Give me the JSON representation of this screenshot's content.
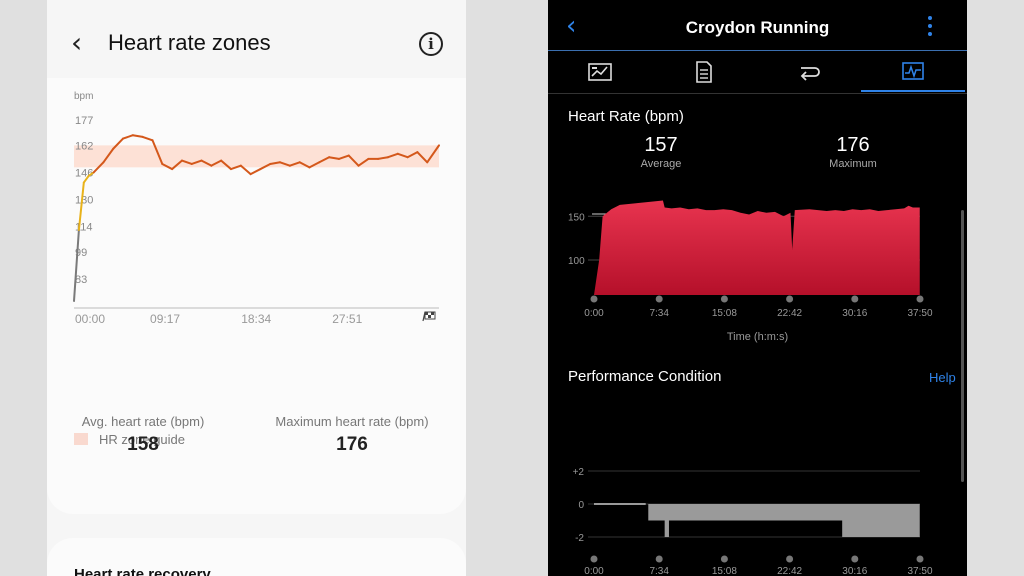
{
  "left": {
    "header": {
      "back_icon": "chevron-left-icon",
      "title": "Heart rate zones",
      "info_icon": "info-icon"
    },
    "chart_data": {
      "type": "line",
      "ylabel": "bpm",
      "yticks": [
        "177",
        "162",
        "146",
        "130",
        "114",
        "99",
        "83"
      ],
      "xticks": [
        "00:00",
        "09:17",
        "18:34",
        "27:51"
      ],
      "finish_icon": "checkered-flag-icon",
      "zone_band_bpm": [
        149,
        162
      ],
      "series": [
        {
          "x_min": [
            0,
            0.5,
            1,
            1.5,
            2,
            3,
            4,
            5,
            6,
            7,
            8,
            9,
            10,
            11,
            12,
            13,
            14,
            15,
            16,
            17,
            18,
            19,
            20,
            21,
            22,
            23,
            24,
            25,
            26,
            27,
            28,
            29,
            30,
            31,
            32,
            33,
            34,
            35,
            36,
            37.2
          ],
          "values": [
            70,
            112,
            140,
            144,
            146,
            152,
            160,
            166,
            168,
            167,
            165,
            151,
            148,
            153,
            151,
            153,
            150,
            153,
            148,
            150,
            145,
            148,
            151,
            152,
            150,
            152,
            149,
            152,
            155,
            154,
            156,
            150,
            154,
            154,
            155,
            157,
            155,
            158,
            152,
            162
          ]
        }
      ],
      "colors": {
        "line_hot": "#d4581b",
        "line_warm": "#e8b21a",
        "line_low": "#7a7a7a",
        "zone": "#fde1d6"
      }
    },
    "legend": {
      "label": "HR zone guide"
    },
    "stats": {
      "avg_label": "Avg. heart rate (bpm)",
      "avg_value": "158",
      "max_label": "Maximum heart rate (bpm)",
      "max_value": "176"
    },
    "next_card_title": "Heart rate recovery"
  },
  "right": {
    "header": {
      "back_icon": "chevron-left-icon",
      "title": "Croydon Running",
      "menu_icon": "more-vertical-icon"
    },
    "tabs": [
      {
        "icon": "overview-icon",
        "active": false
      },
      {
        "icon": "stats-list-icon",
        "active": false
      },
      {
        "icon": "laps-icon",
        "active": false
      },
      {
        "icon": "chart-icon",
        "active": true
      }
    ],
    "hr": {
      "title": "Heart Rate (bpm)",
      "average_value": "157",
      "average_label": "Average",
      "maximum_value": "176",
      "maximum_label": "Maximum"
    },
    "hr_chart": {
      "type": "area",
      "yticks": [
        "150",
        "100"
      ],
      "xticks": [
        "0:00",
        "7:34",
        "15:08",
        "22:42",
        "30:16",
        "37:50"
      ],
      "xlabel": "Time (h:m:s)",
      "ylim": [
        60,
        180
      ],
      "x_min": [
        0,
        0.6,
        1,
        2,
        3,
        5,
        7,
        8,
        8.2,
        9,
        10,
        11,
        12,
        13,
        14,
        15,
        16,
        17,
        18,
        19,
        20,
        21,
        22,
        22.8,
        23.0,
        23.3,
        25,
        27,
        28,
        29,
        30,
        31,
        32,
        33,
        34,
        35,
        36,
        36.5,
        37,
        37.8
      ],
      "values": [
        60,
        100,
        150,
        158,
        163,
        165,
        167,
        168,
        160,
        159,
        160,
        158,
        159,
        157,
        157,
        158,
        157,
        154,
        152,
        156,
        154,
        155,
        150,
        154,
        112,
        157,
        158,
        156,
        157,
        156,
        158,
        157,
        158,
        156,
        157,
        158,
        159,
        162,
        160,
        160
      ],
      "colors": {
        "top": "#e8344f",
        "bottom": "#b5102a"
      }
    },
    "pc": {
      "title": "Performance Condition",
      "help": "Help",
      "yticks": [
        "+2",
        "0",
        "-2"
      ],
      "xticks": [
        "0:00",
        "7:34",
        "15:08",
        "22:42",
        "30:16",
        "37:50"
      ],
      "steps": [
        [
          6,
          0
        ],
        [
          6.3,
          -1
        ],
        [
          8.2,
          -2
        ],
        [
          8.7,
          -1
        ],
        [
          28.8,
          -2
        ],
        [
          37.8,
          -2
        ]
      ]
    }
  }
}
